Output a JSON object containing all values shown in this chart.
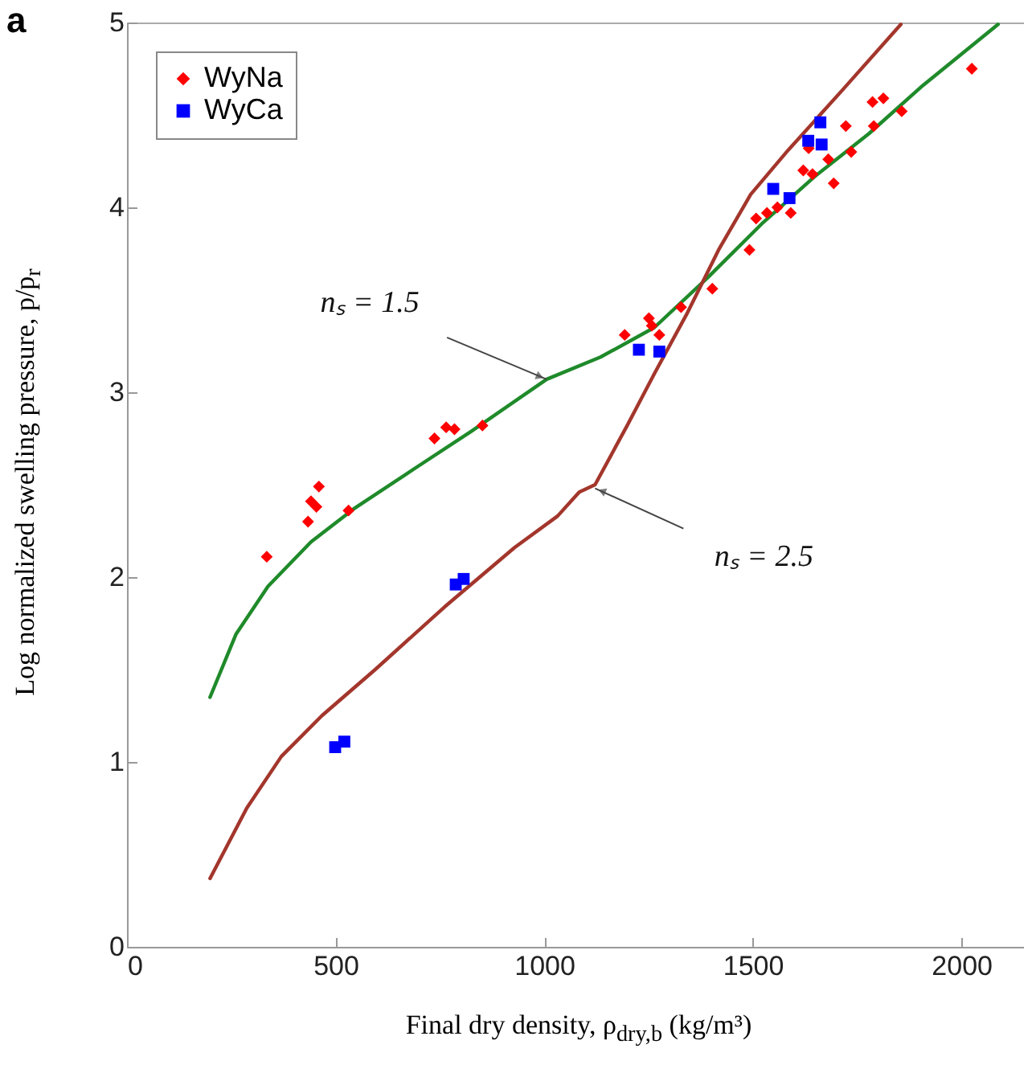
{
  "chart_data": {
    "type": "scatter",
    "title": "a",
    "xlabel": "Final dry density, ρ$_{dry,b}$ (kg/m³)",
    "ylabel": "Log normalized swelling pressure, p/p$_{r}$",
    "xlim": [
      0,
      2150
    ],
    "ylim": [
      0,
      5
    ],
    "xticks": [
      0,
      500,
      1000,
      1500,
      2000
    ],
    "yticks": [
      0,
      1,
      2,
      3,
      4,
      5
    ],
    "legend": "top left",
    "annotations": [
      {
        "text": "nₛ = 1.5",
        "x": 1006,
        "y": 3.07
      },
      {
        "text": "nₛ = 2.5",
        "x": 1122,
        "y": 2.48
      }
    ],
    "series": [
      {
        "type": "line",
        "color": "#1f8a2a",
        "x": [
          199,
          261,
          338,
          441,
          544,
          698,
          826,
          1006,
          1135,
          1264,
          1392,
          1521,
          1650,
          1779,
          1908,
          2088
        ],
        "values": [
          1.35,
          1.69,
          1.95,
          2.19,
          2.37,
          2.6,
          2.79,
          3.07,
          3.19,
          3.35,
          3.62,
          3.91,
          4.17,
          4.4,
          4.66,
          4.99
        ]
      },
      {
        "type": "line",
        "color": "#a3362c",
        "x": [
          199,
          287,
          370,
          467,
          595,
          762,
          929,
          1032,
          1084,
          1122,
          1199,
          1264,
          1341,
          1418,
          1495,
          1585,
          1713,
          1855
        ],
        "values": [
          0.37,
          0.75,
          1.03,
          1.25,
          1.5,
          1.84,
          2.16,
          2.33,
          2.46,
          2.5,
          2.82,
          3.1,
          3.42,
          3.77,
          4.07,
          4.31,
          4.63,
          4.99
        ]
      },
      {
        "name": "WyNa",
        "type": "scatter",
        "marker": "diamond",
        "color": "#ff0000",
        "x": [
          335,
          434,
          441,
          454,
          460,
          531,
          737,
          765,
          785,
          852,
          1193,
          1251,
          1258,
          1276,
          1328,
          1403,
          1492,
          1508,
          1534,
          1559,
          1591,
          1621,
          1643,
          1634,
          1681,
          1694,
          1723,
          1736,
          1790,
          1787,
          1813,
          1857,
          2025
        ],
        "values": [
          2.11,
          2.3,
          2.41,
          2.38,
          2.49,
          2.36,
          2.75,
          2.81,
          2.8,
          2.82,
          3.31,
          3.4,
          3.36,
          3.31,
          3.46,
          3.56,
          3.77,
          3.94,
          3.97,
          4.0,
          3.97,
          4.2,
          4.18,
          4.32,
          4.26,
          4.13,
          4.44,
          4.3,
          4.44,
          4.57,
          4.59,
          4.52,
          4.75
        ]
      },
      {
        "name": "WyCa",
        "type": "scatter",
        "marker": "square",
        "color": "#0000ff",
        "x": [
          499,
          521,
          788,
          807,
          1227,
          1276,
          1549,
          1588,
          1633,
          1665,
          1662
        ],
        "values": [
          1.08,
          1.11,
          1.96,
          1.99,
          3.23,
          3.22,
          4.1,
          4.05,
          4.36,
          4.34,
          4.46
        ]
      }
    ]
  }
}
